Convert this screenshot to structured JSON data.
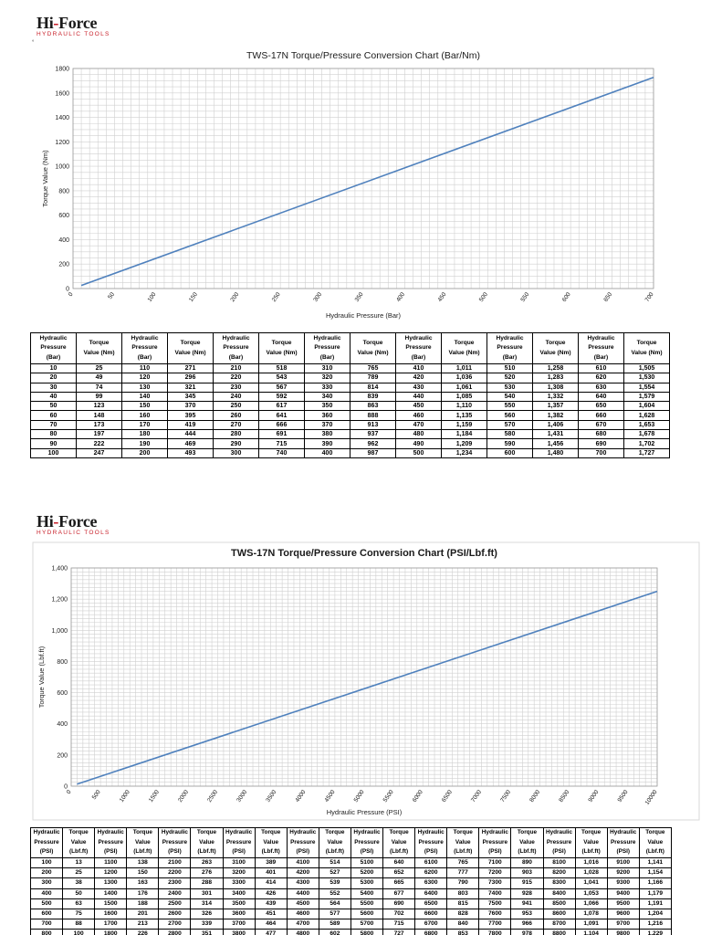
{
  "logos": [
    {
      "brand_main": "Hi",
      "brand_dash": "-",
      "brand_rest": "Force",
      "tagline": "HYDRAULIC TOOLS"
    },
    {
      "brand_main": "Hi",
      "brand_dash": "-",
      "brand_rest": "Force",
      "tagline": "HYDRAULIC TOOLS"
    }
  ],
  "bullet": "°",
  "colors": {
    "line": "#4f81bd",
    "grid": "#d0d0d0",
    "logo_red": "#c8202a"
  },
  "chart_data": [
    {
      "type": "line",
      "title": "TWS-17N Torque/Pressure Conversion Chart (Bar/Nm)",
      "xlabel": "Hydraulic Pressure (Bar)",
      "ylabel": "Torque Value (Nm)",
      "xlim": [
        0,
        700
      ],
      "ylim": [
        0,
        1800
      ],
      "xticks": [
        "0",
        "50",
        "100",
        "150",
        "200",
        "250",
        "300",
        "350",
        "400",
        "450",
        "500",
        "550",
        "600",
        "650",
        "700"
      ],
      "yticks": [
        "0",
        "200",
        "400",
        "600",
        "800",
        "1000",
        "1200",
        "1400",
        "1600",
        "1800"
      ],
      "grid": true,
      "series": [
        {
          "x": [
            10,
            700
          ],
          "y": [
            25,
            1727
          ]
        }
      ]
    },
    {
      "type": "line",
      "title": "TWS-17N Torque/Pressure Conversion Chart (PSI/Lbf.ft)",
      "xlabel": "Hydraulic Pressure (PSI)",
      "ylabel": "Torque Value (Lbf.ft)",
      "xlim": [
        0,
        10000
      ],
      "ylim": [
        0,
        1400
      ],
      "xticks": [
        "0",
        "500",
        "1000",
        "1500",
        "2000",
        "2500",
        "3000",
        "3500",
        "4000",
        "4500",
        "5000",
        "5500",
        "6000",
        "6500",
        "7000",
        "7500",
        "8000",
        "8500",
        "9000",
        "9500",
        "10000"
      ],
      "yticks": [
        "0",
        "200",
        "400",
        "600",
        "800",
        "1,000",
        "1,200",
        "1,400"
      ],
      "grid": true,
      "series": [
        {
          "x": [
            100,
            10000
          ],
          "y": [
            13,
            1250
          ]
        }
      ]
    }
  ],
  "table_bar": {
    "headers": [
      [
        "Hydraulic",
        "Pressure",
        "(Bar)"
      ],
      [
        "Torque",
        "Value (Nm)"
      ]
    ],
    "groups": [
      {
        "rows": [
          [
            "10",
            "25"
          ],
          [
            "20",
            "49"
          ],
          [
            "30",
            "74"
          ],
          [
            "40",
            "99"
          ],
          [
            "50",
            "123"
          ],
          [
            "60",
            "148"
          ],
          [
            "70",
            "173"
          ],
          [
            "80",
            "197"
          ],
          [
            "90",
            "222"
          ],
          [
            "100",
            "247"
          ]
        ]
      },
      {
        "rows": [
          [
            "110",
            "271"
          ],
          [
            "120",
            "296"
          ],
          [
            "130",
            "321"
          ],
          [
            "140",
            "345"
          ],
          [
            "150",
            "370"
          ],
          [
            "160",
            "395"
          ],
          [
            "170",
            "419"
          ],
          [
            "180",
            "444"
          ],
          [
            "190",
            "469"
          ],
          [
            "200",
            "493"
          ]
        ]
      },
      {
        "rows": [
          [
            "210",
            "518"
          ],
          [
            "220",
            "543"
          ],
          [
            "230",
            "567"
          ],
          [
            "240",
            "592"
          ],
          [
            "250",
            "617"
          ],
          [
            "260",
            "641"
          ],
          [
            "270",
            "666"
          ],
          [
            "280",
            "691"
          ],
          [
            "290",
            "715"
          ],
          [
            "300",
            "740"
          ]
        ]
      },
      {
        "rows": [
          [
            "310",
            "765"
          ],
          [
            "320",
            "789"
          ],
          [
            "330",
            "814"
          ],
          [
            "340",
            "839"
          ],
          [
            "350",
            "863"
          ],
          [
            "360",
            "888"
          ],
          [
            "370",
            "913"
          ],
          [
            "380",
            "937"
          ],
          [
            "390",
            "962"
          ],
          [
            "400",
            "987"
          ]
        ]
      },
      {
        "rows": [
          [
            "410",
            "1,011"
          ],
          [
            "420",
            "1,036"
          ],
          [
            "430",
            "1,061"
          ],
          [
            "440",
            "1,085"
          ],
          [
            "450",
            "1,110"
          ],
          [
            "460",
            "1,135"
          ],
          [
            "470",
            "1,159"
          ],
          [
            "480",
            "1,184"
          ],
          [
            "490",
            "1,209"
          ],
          [
            "500",
            "1,234"
          ]
        ]
      },
      {
        "rows": [
          [
            "510",
            "1,258"
          ],
          [
            "520",
            "1,283"
          ],
          [
            "530",
            "1,308"
          ],
          [
            "540",
            "1,332"
          ],
          [
            "550",
            "1,357"
          ],
          [
            "560",
            "1,382"
          ],
          [
            "570",
            "1,406"
          ],
          [
            "580",
            "1,431"
          ],
          [
            "590",
            "1,456"
          ],
          [
            "600",
            "1,480"
          ]
        ]
      },
      {
        "rows": [
          [
            "610",
            "1,505"
          ],
          [
            "620",
            "1,530"
          ],
          [
            "630",
            "1,554"
          ],
          [
            "640",
            "1,579"
          ],
          [
            "650",
            "1,604"
          ],
          [
            "660",
            "1,628"
          ],
          [
            "670",
            "1,653"
          ],
          [
            "680",
            "1,678"
          ],
          [
            "690",
            "1,702"
          ],
          [
            "700",
            "1,727"
          ]
        ]
      }
    ]
  },
  "table_psi": {
    "headers": [
      [
        "Hydraulic",
        "Pressure",
        "(PSI)"
      ],
      [
        "Torque",
        "Value",
        "(Lbf.ft)"
      ]
    ],
    "groups": [
      {
        "rows": [
          [
            "100",
            "13"
          ],
          [
            "200",
            "25"
          ],
          [
            "300",
            "38"
          ],
          [
            "400",
            "50"
          ],
          [
            "500",
            "63"
          ],
          [
            "600",
            "75"
          ],
          [
            "700",
            "88"
          ],
          [
            "800",
            "100"
          ]
        ]
      },
      {
        "rows": [
          [
            "1100",
            "138"
          ],
          [
            "1200",
            "150"
          ],
          [
            "1300",
            "163"
          ],
          [
            "1400",
            "176"
          ],
          [
            "1500",
            "188"
          ],
          [
            "1600",
            "201"
          ],
          [
            "1700",
            "213"
          ],
          [
            "1800",
            "226"
          ]
        ]
      },
      {
        "rows": [
          [
            "2100",
            "263"
          ],
          [
            "2200",
            "276"
          ],
          [
            "2300",
            "288"
          ],
          [
            "2400",
            "301"
          ],
          [
            "2500",
            "314"
          ],
          [
            "2600",
            "326"
          ],
          [
            "2700",
            "339"
          ],
          [
            "2800",
            "351"
          ]
        ]
      },
      {
        "rows": [
          [
            "3100",
            "389"
          ],
          [
            "3200",
            "401"
          ],
          [
            "3300",
            "414"
          ],
          [
            "3400",
            "426"
          ],
          [
            "3500",
            "439"
          ],
          [
            "3600",
            "451"
          ],
          [
            "3700",
            "464"
          ],
          [
            "3800",
            "477"
          ]
        ]
      },
      {
        "rows": [
          [
            "4100",
            "514"
          ],
          [
            "4200",
            "527"
          ],
          [
            "4300",
            "539"
          ],
          [
            "4400",
            "552"
          ],
          [
            "4500",
            "564"
          ],
          [
            "4600",
            "577"
          ],
          [
            "4700",
            "589"
          ],
          [
            "4800",
            "602"
          ]
        ]
      },
      {
        "rows": [
          [
            "5100",
            "640"
          ],
          [
            "5200",
            "652"
          ],
          [
            "5300",
            "665"
          ],
          [
            "5400",
            "677"
          ],
          [
            "5500",
            "690"
          ],
          [
            "5600",
            "702"
          ],
          [
            "5700",
            "715"
          ],
          [
            "5800",
            "727"
          ]
        ]
      },
      {
        "rows": [
          [
            "6100",
            "765"
          ],
          [
            "6200",
            "777"
          ],
          [
            "6300",
            "790"
          ],
          [
            "6400",
            "803"
          ],
          [
            "6500",
            "815"
          ],
          [
            "6600",
            "828"
          ],
          [
            "6700",
            "840"
          ],
          [
            "6800",
            "853"
          ]
        ]
      },
      {
        "rows": [
          [
            "7100",
            "890"
          ],
          [
            "7200",
            "903"
          ],
          [
            "7300",
            "915"
          ],
          [
            "7400",
            "928"
          ],
          [
            "7500",
            "941"
          ],
          [
            "7600",
            "953"
          ],
          [
            "7700",
            "966"
          ],
          [
            "7800",
            "978"
          ]
        ]
      },
      {
        "rows": [
          [
            "8100",
            "1,016"
          ],
          [
            "8200",
            "1,028"
          ],
          [
            "8300",
            "1,041"
          ],
          [
            "8400",
            "1,053"
          ],
          [
            "8500",
            "1,066"
          ],
          [
            "8600",
            "1,078"
          ],
          [
            "8700",
            "1,091"
          ],
          [
            "8800",
            "1,104"
          ]
        ]
      },
      {
        "rows": [
          [
            "9100",
            "1,141"
          ],
          [
            "9200",
            "1,154"
          ],
          [
            "9300",
            "1,166"
          ],
          [
            "9400",
            "1,179"
          ],
          [
            "9500",
            "1,191"
          ],
          [
            "9600",
            "1,204"
          ],
          [
            "9700",
            "1,216"
          ],
          [
            "9800",
            "1,229"
          ]
        ]
      }
    ]
  }
}
